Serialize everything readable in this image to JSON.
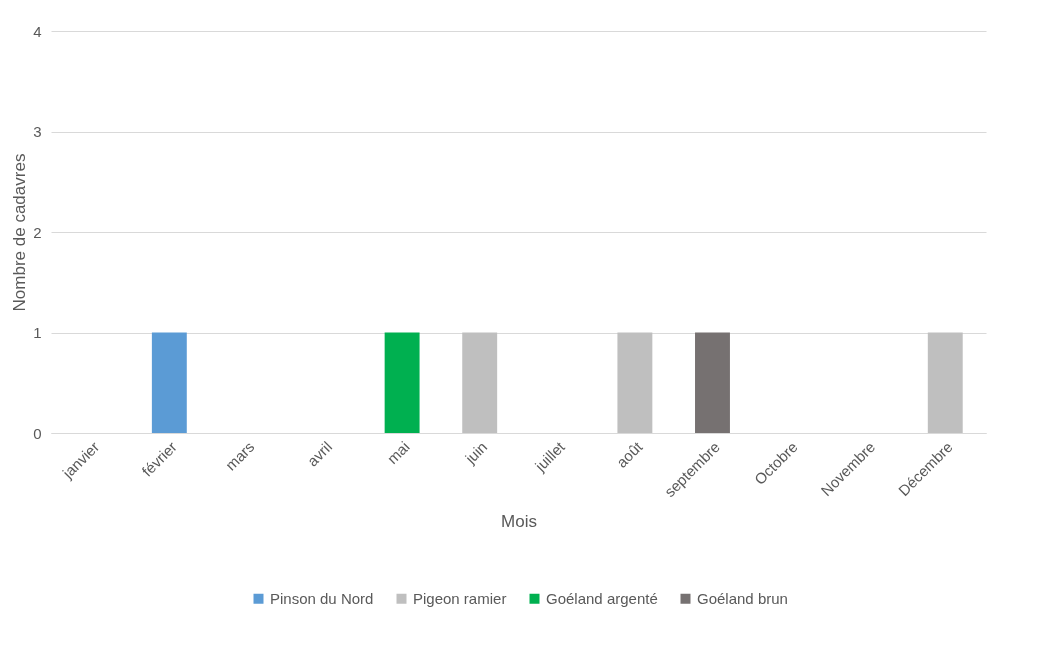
{
  "chart_data": {
    "type": "bar",
    "xlabel": "Mois",
    "ylabel": "Nombre de cadavres",
    "categories": [
      "janvier",
      "février",
      "mars",
      "avril",
      "mai",
      "juin",
      "juillet",
      "août",
      "septembre",
      "Octobre",
      "Novembre",
      "Décembre"
    ],
    "series": [
      {
        "name": "Pinson du Nord",
        "color": "#5b9bd5",
        "values": [
          null,
          1,
          null,
          null,
          null,
          null,
          null,
          null,
          null,
          null,
          null,
          null
        ]
      },
      {
        "name": "Pigeon ramier",
        "color": "#bfbfbf",
        "values": [
          null,
          null,
          null,
          null,
          null,
          1,
          null,
          1,
          null,
          null,
          null,
          1
        ]
      },
      {
        "name": "Goéland argenté",
        "color": "#00b050",
        "values": [
          null,
          null,
          null,
          null,
          1,
          null,
          null,
          null,
          null,
          null,
          null,
          null
        ]
      },
      {
        "name": "Goéland brun",
        "color": "#767171",
        "values": [
          null,
          null,
          null,
          null,
          null,
          null,
          null,
          null,
          1,
          null,
          null,
          null
        ]
      }
    ],
    "ylim": [
      0,
      4
    ],
    "yticks": [
      0,
      1,
      2,
      3,
      4
    ],
    "grid": "y",
    "legend": "bottom"
  }
}
